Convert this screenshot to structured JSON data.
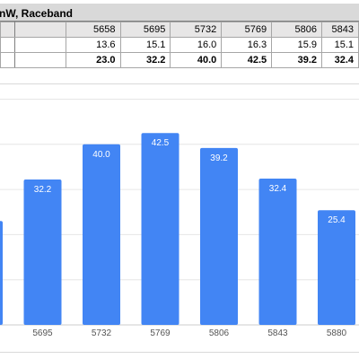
{
  "sheet": {
    "header": "nW, Raceband",
    "freq_row": [
      "5658",
      "5695",
      "5732",
      "5769",
      "5806",
      "5843"
    ],
    "value_row": [
      "13.6",
      "15.1",
      "16.0",
      "16.3",
      "15.9",
      "15.1"
    ],
    "sum_row": [
      "23.0",
      "32.2",
      "40.0",
      "42.5",
      "39.2",
      "32.4"
    ]
  },
  "chart_data": {
    "type": "bar",
    "title": "",
    "xlabel": "",
    "ylabel": "",
    "categories": [
      "5658",
      "5695",
      "5732",
      "5769",
      "5806",
      "5843",
      "5880"
    ],
    "values": [
      23.0,
      32.2,
      40.0,
      42.5,
      39.2,
      32.4,
      25.4
    ],
    "labels": [
      "",
      "32.2",
      "40.0",
      "42.5",
      "39.2",
      "32.4",
      "25.4"
    ],
    "tick_labels": [
      "",
      "5695",
      "5732",
      "5769",
      "5806",
      "5843",
      "5880"
    ],
    "bar_color": "#4285f4",
    "grid": true
  }
}
